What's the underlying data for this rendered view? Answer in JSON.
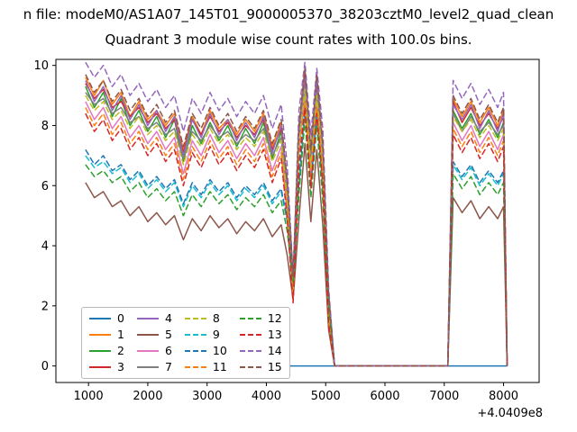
{
  "figure": {
    "title_line1": "n file: modeM0/AS1A07_145T01_9000005370_38203cztM0_level2_quad_clean",
    "title_line2": "Quadrant 3 module wise count rates with 100.0s bins.",
    "x_offset_label": "+4.0409e8"
  },
  "colors": {
    "background": "#ffffff",
    "axis": "#000000",
    "legend_border": "#b9b9b9"
  },
  "chart_data": {
    "type": "line",
    "title": "Quadrant 3 module wise count rates with 100.0s bins.",
    "xlabel": "",
    "ylabel": "",
    "x_axis_offset": "+4.0409e8",
    "xlim": [
      450,
      8600
    ],
    "ylim": [
      -0.55,
      10.2
    ],
    "x_ticks": [
      1000,
      2000,
      3000,
      4000,
      5000,
      6000,
      7000,
      8000
    ],
    "y_ticks": [
      0,
      2,
      4,
      6,
      8,
      10
    ],
    "grid": false,
    "legend_position": "lower left",
    "x": [
      950,
      1100,
      1250,
      1400,
      1550,
      1700,
      1850,
      2000,
      2150,
      2300,
      2450,
      2600,
      2750,
      2900,
      3050,
      3200,
      3350,
      3500,
      3650,
      3800,
      3950,
      4100,
      4250,
      4350,
      4450,
      4550,
      4650,
      4750,
      4850,
      4950,
      5050,
      5150,
      5600,
      6000,
      6500,
      7000,
      7060,
      7150,
      7300,
      7450,
      7600,
      7750,
      7900,
      8000,
      8060
    ],
    "series": [
      {
        "name": "0",
        "color": "#1f77b4",
        "dash": false,
        "values": [
          0,
          0,
          0,
          0,
          0,
          0,
          0,
          0,
          0,
          0,
          0,
          0,
          0,
          0,
          0,
          0,
          0,
          0,
          0,
          0,
          0,
          0,
          0,
          0,
          0,
          0,
          0,
          0,
          0,
          0,
          0,
          0,
          0,
          0,
          0,
          0,
          0,
          0,
          0,
          0,
          0,
          0,
          0,
          0,
          0
        ]
      },
      {
        "name": "1",
        "color": "#ff7f0e",
        "dash": false,
        "values": [
          9.6,
          9.0,
          9.5,
          8.7,
          9.1,
          8.3,
          8.8,
          8.2,
          8.5,
          8.0,
          8.4,
          7.2,
          8.3,
          7.7,
          8.5,
          7.9,
          8.2,
          7.7,
          8.2,
          7.8,
          8.4,
          7.3,
          8.1,
          6.1,
          2.9,
          7.9,
          9.8,
          7.1,
          9.6,
          7.3,
          2.3,
          0,
          0,
          0,
          0,
          0,
          0,
          8.9,
          8.3,
          8.8,
          8.1,
          8.6,
          8.0,
          8.5,
          0
        ]
      },
      {
        "name": "2",
        "color": "#2ca02c",
        "dash": false,
        "values": [
          9.3,
          8.6,
          9.1,
          8.3,
          8.9,
          8.0,
          8.5,
          7.8,
          8.3,
          7.6,
          8.2,
          6.8,
          8.0,
          7.4,
          8.1,
          7.5,
          8.0,
          7.3,
          7.9,
          7.4,
          8.1,
          6.9,
          7.8,
          5.7,
          2.6,
          7.5,
          9.4,
          6.7,
          9.2,
          6.9,
          1.9,
          0,
          0,
          0,
          0,
          0,
          0,
          8.5,
          7.9,
          8.4,
          7.7,
          8.2,
          7.6,
          8.1,
          0
        ]
      },
      {
        "name": "3",
        "color": "#d62728",
        "dash": false,
        "values": [
          9.4,
          8.9,
          9.2,
          8.6,
          8.8,
          8.3,
          8.6,
          8.1,
          8.4,
          7.9,
          8.2,
          7.1,
          8.2,
          7.7,
          8.3,
          7.8,
          8.1,
          7.6,
          8.0,
          7.7,
          8.2,
          7.2,
          7.9,
          6.0,
          2.7,
          7.8,
          9.7,
          7.0,
          9.4,
          7.2,
          2.1,
          0,
          0,
          0,
          0,
          0,
          0,
          8.8,
          8.1,
          8.6,
          8.0,
          8.4,
          7.9,
          8.3,
          0
        ]
      },
      {
        "name": "4",
        "color": "#9467bd",
        "dash": false,
        "values": [
          9.5,
          8.8,
          9.3,
          8.5,
          9.0,
          8.2,
          8.7,
          8.0,
          8.5,
          7.8,
          8.3,
          7.0,
          8.2,
          7.6,
          8.4,
          7.7,
          8.2,
          7.5,
          8.1,
          7.6,
          8.3,
          7.1,
          8.0,
          5.9,
          2.8,
          7.7,
          9.6,
          6.9,
          9.5,
          7.1,
          2.2,
          0,
          0,
          0,
          0,
          0,
          0,
          8.7,
          8.2,
          8.7,
          7.9,
          8.5,
          7.8,
          8.4,
          0
        ]
      },
      {
        "name": "5",
        "color": "#8c564b",
        "dash": false,
        "values": [
          6.1,
          5.6,
          5.8,
          5.3,
          5.5,
          5.0,
          5.3,
          4.8,
          5.1,
          4.7,
          5.0,
          4.2,
          4.9,
          4.5,
          5.0,
          4.6,
          4.9,
          4.4,
          4.8,
          4.5,
          4.9,
          4.3,
          4.7,
          3.7,
          2.2,
          4.9,
          7.4,
          4.8,
          7.2,
          4.7,
          1.2,
          0,
          0,
          0,
          0,
          0,
          0,
          5.6,
          5.1,
          5.5,
          4.9,
          5.3,
          4.9,
          5.3,
          0
        ]
      },
      {
        "name": "6",
        "color": "#e377c2",
        "dash": false,
        "values": [
          8.8,
          8.2,
          8.6,
          7.9,
          8.3,
          7.6,
          8.0,
          7.4,
          7.8,
          7.2,
          7.6,
          6.4,
          7.5,
          7.0,
          7.7,
          7.1,
          7.5,
          6.9,
          7.4,
          7.0,
          7.6,
          6.5,
          7.3,
          5.3,
          2.4,
          7.1,
          9.0,
          6.3,
          8.8,
          6.5,
          1.7,
          0,
          0,
          0,
          0,
          0,
          0,
          8.1,
          7.5,
          8.0,
          7.3,
          7.8,
          7.2,
          7.7,
          0
        ]
      },
      {
        "name": "7",
        "color": "#7f7f7f",
        "dash": false,
        "values": [
          9.1,
          8.7,
          8.9,
          8.4,
          8.6,
          8.1,
          8.3,
          7.9,
          8.1,
          7.7,
          7.9,
          6.9,
          7.8,
          7.5,
          8.0,
          7.6,
          7.8,
          7.4,
          7.7,
          7.5,
          7.9,
          7.0,
          7.6,
          5.8,
          2.5,
          7.6,
          9.3,
          6.8,
          9.1,
          7.0,
          2.0,
          0,
          0,
          0,
          0,
          0,
          0,
          8.4,
          7.8,
          8.3,
          7.8,
          8.1,
          7.7,
          8.0,
          0
        ]
      },
      {
        "name": "8",
        "color": "#bcbd22",
        "dash": true,
        "values": [
          9.0,
          8.5,
          8.8,
          8.2,
          8.5,
          7.9,
          8.3,
          7.7,
          8.0,
          7.5,
          7.8,
          6.7,
          7.7,
          7.3,
          7.9,
          7.4,
          7.7,
          7.2,
          7.6,
          7.3,
          7.8,
          6.8,
          7.5,
          5.6,
          2.5,
          7.4,
          9.2,
          6.6,
          9.0,
          6.8,
          1.8,
          0,
          0,
          0,
          0,
          0,
          0,
          8.3,
          7.8,
          8.2,
          7.6,
          8.0,
          7.5,
          7.9,
          0
        ]
      },
      {
        "name": "9",
        "color": "#17becf",
        "dash": true,
        "values": [
          7.0,
          6.6,
          6.8,
          6.4,
          6.6,
          6.1,
          6.4,
          5.9,
          6.2,
          5.8,
          6.1,
          5.3,
          6.0,
          5.6,
          6.1,
          5.7,
          6.0,
          5.5,
          5.9,
          5.6,
          6.0,
          5.4,
          5.8,
          4.8,
          3.1,
          6.0,
          8.5,
          5.9,
          8.3,
          5.8,
          2.3,
          0,
          0,
          0,
          0,
          0,
          0,
          6.7,
          6.2,
          6.6,
          6.0,
          6.4,
          6.0,
          6.4,
          0
        ]
      },
      {
        "name": "10",
        "color": "#1f77b4",
        "dash": true,
        "values": [
          7.2,
          6.7,
          7.0,
          6.5,
          6.7,
          6.2,
          6.5,
          6.0,
          6.3,
          5.9,
          6.2,
          5.4,
          6.1,
          5.7,
          6.2,
          5.8,
          6.1,
          5.6,
          6.0,
          5.7,
          6.1,
          5.5,
          5.9,
          4.9,
          3.2,
          6.1,
          8.6,
          6.0,
          8.4,
          5.9,
          2.4,
          0,
          0,
          0,
          0,
          0,
          0,
          6.8,
          6.3,
          6.7,
          6.1,
          6.5,
          6.1,
          6.5,
          0
        ]
      },
      {
        "name": "11",
        "color": "#ff7f0e",
        "dash": true,
        "values": [
          8.6,
          8.0,
          8.4,
          7.7,
          8.1,
          7.4,
          7.8,
          7.2,
          7.6,
          7.0,
          7.4,
          6.2,
          7.3,
          6.8,
          7.5,
          6.9,
          7.3,
          6.7,
          7.2,
          6.8,
          7.4,
          6.3,
          7.1,
          5.1,
          2.2,
          6.9,
          8.8,
          6.1,
          8.6,
          6.3,
          1.5,
          0,
          0,
          0,
          0,
          0,
          0,
          7.9,
          7.3,
          7.8,
          7.1,
          7.6,
          7.0,
          7.5,
          0
        ]
      },
      {
        "name": "12",
        "color": "#2ca02c",
        "dash": true,
        "values": [
          6.7,
          6.3,
          6.5,
          6.1,
          6.3,
          5.8,
          6.1,
          5.6,
          5.9,
          5.5,
          5.8,
          5.0,
          5.7,
          5.3,
          5.8,
          5.4,
          5.7,
          5.2,
          5.6,
          5.3,
          5.7,
          5.1,
          5.5,
          4.5,
          2.8,
          5.7,
          8.2,
          5.6,
          8.0,
          5.5,
          2.0,
          0,
          0,
          0,
          0,
          0,
          0,
          6.4,
          5.9,
          6.3,
          5.7,
          6.1,
          5.7,
          6.1,
          0
        ]
      },
      {
        "name": "13",
        "color": "#d62728",
        "dash": true,
        "values": [
          8.4,
          7.8,
          8.2,
          7.5,
          7.9,
          7.2,
          7.6,
          7.0,
          7.4,
          6.8,
          7.2,
          6.0,
          7.1,
          6.6,
          7.3,
          6.7,
          7.1,
          6.5,
          7.0,
          6.6,
          7.2,
          6.1,
          6.9,
          4.9,
          2.1,
          6.7,
          8.6,
          5.9,
          8.4,
          6.1,
          1.4,
          0,
          0,
          0,
          0,
          0,
          0,
          7.7,
          7.1,
          7.6,
          6.9,
          7.4,
          6.8,
          7.3,
          0
        ]
      },
      {
        "name": "14",
        "color": "#9467bd",
        "dash": true,
        "values": [
          10.1,
          9.6,
          10.0,
          9.3,
          9.7,
          9.0,
          9.4,
          8.8,
          9.2,
          8.6,
          9.0,
          7.8,
          8.9,
          8.4,
          9.1,
          8.5,
          8.9,
          8.3,
          8.8,
          8.4,
          9.0,
          7.9,
          8.7,
          6.7,
          3.0,
          8.5,
          10.1,
          7.7,
          9.9,
          7.9,
          2.6,
          0,
          0,
          0,
          0,
          0,
          0,
          9.5,
          8.9,
          9.4,
          8.7,
          9.2,
          8.6,
          9.1,
          0
        ]
      },
      {
        "name": "15",
        "color": "#8c564b",
        "dash": true,
        "values": [
          9.7,
          9.1,
          9.5,
          8.8,
          9.2,
          8.5,
          8.9,
          8.3,
          8.7,
          8.1,
          8.5,
          7.3,
          8.4,
          7.9,
          8.6,
          8.0,
          8.4,
          7.8,
          8.3,
          7.9,
          8.5,
          7.4,
          8.2,
          6.2,
          3.0,
          8.0,
          9.9,
          7.2,
          9.7,
          7.4,
          2.4,
          0,
          0,
          0,
          0,
          0,
          0,
          9.0,
          8.4,
          8.9,
          8.2,
          8.7,
          8.1,
          8.6,
          0
        ]
      }
    ]
  }
}
